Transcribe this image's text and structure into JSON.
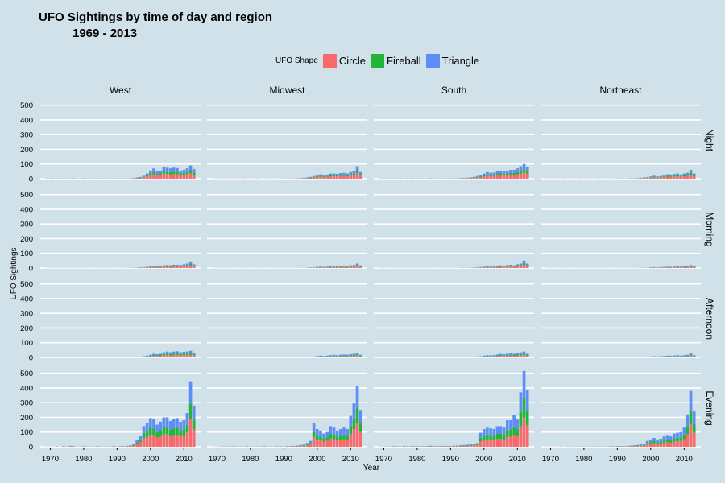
{
  "title": "UFO Sightings by time of day and region",
  "subtitle": "1969 - 2013",
  "legend": {
    "title": "UFO Shape",
    "items": [
      {
        "label": "Circle",
        "color": "#f8696b"
      },
      {
        "label": "Fireball",
        "color": "#22b53a"
      },
      {
        "label": "Triangle",
        "color": "#5d8df5"
      }
    ]
  },
  "chart_data": {
    "type": "bar",
    "stacked": true,
    "faceted": true,
    "xlabel": "Year",
    "ylabel": "UFO Sightings",
    "xlim": [
      1967,
      2015
    ],
    "x_ticks": [
      1970,
      1980,
      1990,
      2000,
      2010
    ],
    "y_ticks": [
      0,
      100,
      200,
      300,
      400,
      500
    ],
    "ylim": [
      0,
      520
    ],
    "grid": true,
    "legend_position": "top",
    "columns": [
      "West",
      "Midwest",
      "South",
      "Northeast"
    ],
    "rows": [
      "Night",
      "Morning",
      "Afternoon",
      "Evening"
    ],
    "series": [
      "Circle",
      "Fireball",
      "Triangle"
    ],
    "years": [
      1969,
      1970,
      1971,
      1972,
      1973,
      1974,
      1975,
      1976,
      1977,
      1978,
      1979,
      1980,
      1981,
      1982,
      1983,
      1984,
      1985,
      1986,
      1987,
      1988,
      1989,
      1990,
      1991,
      1992,
      1993,
      1994,
      1995,
      1996,
      1997,
      1998,
      1999,
      2000,
      2001,
      2002,
      2003,
      2004,
      2005,
      2006,
      2007,
      2008,
      2009,
      2010,
      2011,
      2012,
      2013
    ],
    "panels": [
      {
        "row": "Night",
        "column": "West",
        "totals": [
          2,
          2,
          3,
          2,
          3,
          2,
          2,
          2,
          3,
          2,
          2,
          3,
          2,
          2,
          2,
          2,
          3,
          2,
          2,
          2,
          3,
          2,
          2,
          2,
          3,
          3,
          5,
          8,
          12,
          20,
          35,
          55,
          70,
          50,
          55,
          80,
          75,
          70,
          75,
          72,
          55,
          60,
          70,
          90,
          65
        ],
        "circle_share": 0.42,
        "fireball_share": 0.22
      },
      {
        "row": "Night",
        "column": "Midwest",
        "totals": [
          1,
          1,
          1,
          2,
          1,
          1,
          2,
          1,
          1,
          2,
          1,
          1,
          1,
          2,
          1,
          1,
          1,
          2,
          1,
          1,
          1,
          2,
          2,
          2,
          2,
          3,
          4,
          6,
          8,
          12,
          18,
          25,
          30,
          25,
          28,
          35,
          35,
          33,
          38,
          40,
          35,
          45,
          50,
          85,
          45
        ],
        "circle_share": 0.45,
        "fireball_share": 0.22
      },
      {
        "row": "Night",
        "column": "South",
        "totals": [
          2,
          2,
          2,
          3,
          2,
          2,
          3,
          2,
          2,
          3,
          2,
          2,
          3,
          2,
          2,
          3,
          2,
          2,
          3,
          2,
          2,
          3,
          3,
          3,
          4,
          5,
          6,
          8,
          12,
          18,
          25,
          35,
          45,
          40,
          42,
          55,
          55,
          50,
          55,
          60,
          60,
          70,
          85,
          100,
          80
        ],
        "circle_share": 0.42,
        "fireball_share": 0.23
      },
      {
        "row": "Night",
        "column": "Northeast",
        "totals": [
          1,
          1,
          1,
          1,
          1,
          2,
          1,
          1,
          1,
          1,
          2,
          1,
          1,
          1,
          1,
          2,
          1,
          1,
          1,
          1,
          2,
          2,
          2,
          2,
          2,
          3,
          3,
          4,
          6,
          8,
          10,
          15,
          20,
          15,
          18,
          25,
          30,
          28,
          32,
          35,
          28,
          35,
          40,
          60,
          35
        ],
        "circle_share": 0.45,
        "fireball_share": 0.22
      },
      {
        "row": "Morning",
        "column": "West",
        "totals": [
          1,
          1,
          1,
          1,
          1,
          1,
          1,
          1,
          1,
          1,
          1,
          1,
          1,
          1,
          1,
          1,
          1,
          1,
          1,
          1,
          1,
          1,
          1,
          1,
          2,
          2,
          3,
          3,
          5,
          6,
          8,
          12,
          15,
          12,
          14,
          18,
          20,
          18,
          22,
          22,
          20,
          25,
          30,
          45,
          25
        ],
        "circle_share": 0.42,
        "fireball_share": 0.23
      },
      {
        "row": "Morning",
        "column": "Midwest",
        "totals": [
          1,
          1,
          1,
          1,
          1,
          1,
          1,
          1,
          1,
          1,
          1,
          1,
          1,
          1,
          1,
          1,
          1,
          1,
          1,
          1,
          1,
          1,
          1,
          1,
          1,
          1,
          2,
          2,
          3,
          4,
          5,
          8,
          10,
          8,
          9,
          12,
          14,
          12,
          15,
          15,
          14,
          18,
          20,
          30,
          18
        ],
        "circle_share": 0.42,
        "fireball_share": 0.23
      },
      {
        "row": "Morning",
        "column": "South",
        "totals": [
          1,
          1,
          1,
          1,
          1,
          1,
          1,
          1,
          1,
          1,
          1,
          1,
          1,
          1,
          1,
          1,
          1,
          1,
          1,
          1,
          1,
          1,
          1,
          1,
          2,
          2,
          2,
          3,
          4,
          5,
          7,
          10,
          12,
          10,
          12,
          16,
          18,
          16,
          20,
          22,
          18,
          25,
          30,
          50,
          30
        ],
        "circle_share": 0.42,
        "fireball_share": 0.23
      },
      {
        "row": "Morning",
        "column": "Northeast",
        "totals": [
          1,
          1,
          1,
          1,
          1,
          1,
          1,
          1,
          1,
          1,
          1,
          1,
          1,
          1,
          1,
          1,
          1,
          1,
          1,
          1,
          1,
          1,
          1,
          1,
          1,
          1,
          1,
          2,
          2,
          3,
          3,
          5,
          6,
          5,
          6,
          8,
          9,
          8,
          10,
          12,
          10,
          12,
          15,
          20,
          12
        ],
        "circle_share": 0.42,
        "fireball_share": 0.23
      },
      {
        "row": "Afternoon",
        "column": "West",
        "totals": [
          1,
          1,
          1,
          1,
          1,
          1,
          2,
          1,
          1,
          1,
          1,
          2,
          1,
          1,
          1,
          1,
          1,
          1,
          1,
          2,
          1,
          1,
          1,
          2,
          2,
          2,
          3,
          4,
          5,
          8,
          12,
          18,
          25,
          22,
          25,
          35,
          40,
          35,
          40,
          42,
          35,
          38,
          40,
          45,
          30
        ],
        "circle_share": 0.42,
        "fireball_share": 0.23
      },
      {
        "row": "Afternoon",
        "column": "Midwest",
        "totals": [
          1,
          1,
          1,
          1,
          1,
          1,
          1,
          1,
          1,
          1,
          1,
          1,
          1,
          1,
          1,
          1,
          1,
          1,
          1,
          1,
          1,
          1,
          1,
          1,
          1,
          2,
          2,
          3,
          3,
          5,
          6,
          10,
          12,
          10,
          12,
          15,
          18,
          15,
          18,
          20,
          18,
          22,
          25,
          30,
          18
        ],
        "circle_share": 0.42,
        "fireball_share": 0.23
      },
      {
        "row": "Afternoon",
        "column": "South",
        "totals": [
          1,
          1,
          1,
          1,
          1,
          1,
          1,
          1,
          1,
          1,
          1,
          1,
          1,
          1,
          1,
          1,
          1,
          1,
          1,
          1,
          1,
          1,
          1,
          2,
          2,
          2,
          3,
          3,
          4,
          6,
          8,
          12,
          15,
          14,
          16,
          20,
          24,
          22,
          25,
          28,
          25,
          30,
          35,
          40,
          25
        ],
        "circle_share": 0.42,
        "fireball_share": 0.23
      },
      {
        "row": "Afternoon",
        "column": "Northeast",
        "totals": [
          1,
          1,
          1,
          1,
          1,
          1,
          1,
          1,
          1,
          1,
          1,
          1,
          1,
          1,
          1,
          1,
          1,
          1,
          1,
          1,
          1,
          1,
          1,
          1,
          1,
          1,
          2,
          2,
          3,
          3,
          4,
          6,
          8,
          7,
          8,
          10,
          12,
          11,
          13,
          15,
          12,
          15,
          18,
          30,
          15
        ],
        "circle_share": 0.42,
        "fireball_share": 0.23
      },
      {
        "row": "Evening",
        "column": "West",
        "totals": [
          1,
          1,
          1,
          3,
          1,
          5,
          3,
          6,
          5,
          2,
          3,
          4,
          3,
          2,
          3,
          4,
          3,
          2,
          3,
          3,
          5,
          3,
          4,
          4,
          6,
          10,
          20,
          45,
          75,
          140,
          160,
          195,
          190,
          150,
          170,
          200,
          200,
          175,
          190,
          195,
          170,
          180,
          230,
          445,
          280
        ],
        "circle_share": 0.42,
        "fireball_share": 0.24
      },
      {
        "row": "Evening",
        "column": "Midwest",
        "totals": [
          1,
          1,
          2,
          3,
          3,
          3,
          4,
          3,
          3,
          2,
          4,
          3,
          2,
          3,
          3,
          5,
          3,
          3,
          2,
          4,
          4,
          3,
          5,
          5,
          6,
          8,
          12,
          15,
          25,
          40,
          160,
          120,
          110,
          90,
          100,
          140,
          130,
          110,
          120,
          130,
          120,
          210,
          300,
          410,
          250
        ],
        "circle_share": 0.4,
        "fireball_share": 0.24
      },
      {
        "row": "Evening",
        "column": "South",
        "totals": [
          2,
          2,
          3,
          3,
          4,
          4,
          3,
          5,
          4,
          4,
          5,
          4,
          4,
          5,
          5,
          7,
          6,
          5,
          6,
          6,
          6,
          5,
          7,
          8,
          10,
          12,
          14,
          16,
          20,
          25,
          95,
          120,
          130,
          125,
          120,
          140,
          140,
          130,
          180,
          180,
          215,
          185,
          370,
          515,
          385
        ],
        "circle_share": 0.38,
        "fireball_share": 0.26
      },
      {
        "row": "Evening",
        "column": "Northeast",
        "totals": [
          1,
          1,
          1,
          1,
          2,
          1,
          2,
          3,
          2,
          2,
          3,
          2,
          3,
          2,
          3,
          3,
          2,
          3,
          3,
          4,
          4,
          5,
          5,
          5,
          6,
          8,
          10,
          12,
          16,
          20,
          40,
          50,
          60,
          50,
          55,
          70,
          80,
          70,
          90,
          95,
          100,
          130,
          220,
          380,
          240
        ],
        "circle_share": 0.4,
        "fireball_share": 0.24
      }
    ]
  }
}
